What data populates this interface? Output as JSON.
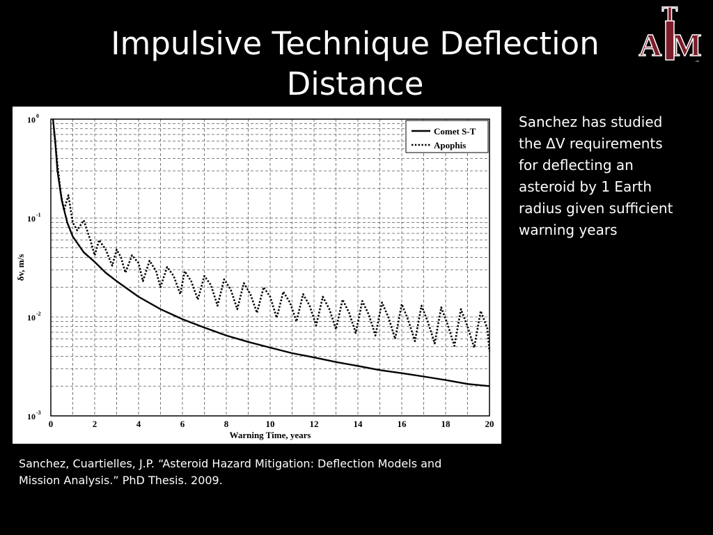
{
  "slide": {
    "title_lines": [
      "Impulsive Technique Deflection",
      "Distance"
    ],
    "side_text": "Sanchez has studied the ΔV requirements for deflecting an asteroid by 1 Earth radius given sufficient warning years",
    "citation": "Sanchez, Cuartielles, J.P. “Asteroid Hazard Mitigation: Deflection Models and Mission Analysis.” PhD Thesis. 2009.",
    "logo": {
      "text_a": "A",
      "text_t": "T",
      "text_m": "M",
      "tm": "™",
      "color": "#7d1d2a",
      "icon": "texas-am-logo"
    }
  },
  "chart_data": {
    "type": "line",
    "title": "",
    "xlabel": "Warning Time, years",
    "ylabel": "δv, m/s",
    "xlim": [
      0,
      20
    ],
    "ylim": [
      0.001,
      1
    ],
    "yscale": "log",
    "grid": true,
    "legend_position": "top-right",
    "x_ticks": [
      "0",
      "2",
      "4",
      "6",
      "8",
      "10",
      "12",
      "14",
      "16",
      "18",
      "20"
    ],
    "y_ticks": [
      {
        "value": 1,
        "base": "10",
        "exp": "0"
      },
      {
        "value": 0.1,
        "base": "10",
        "exp": "-1"
      },
      {
        "value": 0.01,
        "base": "10",
        "exp": "-2"
      },
      {
        "value": 0.001,
        "base": "10",
        "exp": "-3"
      }
    ],
    "series": [
      {
        "name": "Comet S-T",
        "style": "solid",
        "x": [
          0.1,
          0.2,
          0.3,
          0.5,
          0.75,
          1,
          1.5,
          2,
          2.5,
          3,
          4,
          5,
          6,
          7,
          8,
          9,
          10,
          11,
          12,
          13,
          14,
          15,
          16,
          17,
          18,
          19,
          20
        ],
        "y": [
          1.0,
          0.6,
          0.3,
          0.15,
          0.09,
          0.065,
          0.045,
          0.036,
          0.028,
          0.023,
          0.016,
          0.012,
          0.0095,
          0.0078,
          0.0065,
          0.0056,
          0.0049,
          0.0043,
          0.0039,
          0.0035,
          0.0032,
          0.0029,
          0.0027,
          0.0025,
          0.0023,
          0.0021,
          0.002
        ]
      },
      {
        "name": "Apophis",
        "style": "dotted",
        "x": [
          0.15,
          0.3,
          0.45,
          0.6,
          0.8,
          1.0,
          1.2,
          1.5,
          1.8,
          2.0,
          2.2,
          2.5,
          2.8,
          3.0,
          3.2,
          3.4,
          3.7,
          4.0,
          4.2,
          4.5,
          4.8,
          5.0,
          5.3,
          5.6,
          5.9,
          6.1,
          6.4,
          6.7,
          7.0,
          7.3,
          7.6,
          7.9,
          8.2,
          8.5,
          8.8,
          9.1,
          9.4,
          9.7,
          10.0,
          10.3,
          10.6,
          10.9,
          11.2,
          11.5,
          11.8,
          12.1,
          12.4,
          12.7,
          13.0,
          13.3,
          13.6,
          13.9,
          14.2,
          14.5,
          14.8,
          15.1,
          15.4,
          15.7,
          16.0,
          16.3,
          16.6,
          16.9,
          17.2,
          17.5,
          17.8,
          18.1,
          18.4,
          18.7,
          19.0,
          19.3,
          19.6,
          19.9,
          20.0
        ],
        "y": [
          0.75,
          0.35,
          0.18,
          0.12,
          0.17,
          0.09,
          0.075,
          0.095,
          0.06,
          0.042,
          0.06,
          0.048,
          0.033,
          0.048,
          0.04,
          0.028,
          0.042,
          0.035,
          0.023,
          0.037,
          0.029,
          0.02,
          0.032,
          0.026,
          0.017,
          0.029,
          0.023,
          0.015,
          0.026,
          0.021,
          0.013,
          0.024,
          0.019,
          0.012,
          0.022,
          0.017,
          0.011,
          0.02,
          0.016,
          0.0098,
          0.018,
          0.014,
          0.009,
          0.017,
          0.013,
          0.0082,
          0.016,
          0.012,
          0.0075,
          0.015,
          0.011,
          0.0069,
          0.0145,
          0.0105,
          0.0065,
          0.014,
          0.0098,
          0.006,
          0.0135,
          0.0092,
          0.0057,
          0.013,
          0.0088,
          0.0054,
          0.0125,
          0.0083,
          0.0051,
          0.012,
          0.008,
          0.0049,
          0.0115,
          0.0077,
          0.0045
        ]
      }
    ]
  }
}
